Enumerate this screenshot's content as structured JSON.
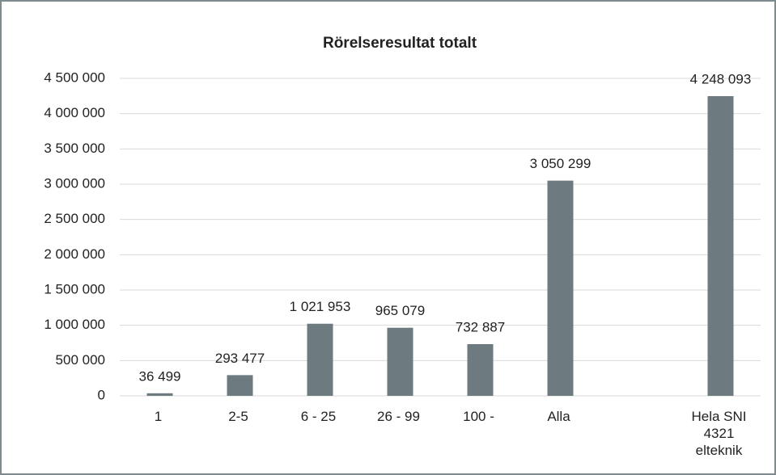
{
  "chart_data": {
    "type": "bar",
    "title": "Rörelseresultat totalt",
    "categories": [
      "1",
      "2-5",
      "6 - 25",
      "26 - 99",
      "100 -",
      "Alla",
      null,
      "Hela SNI 4321 elteknik"
    ],
    "values": [
      36499,
      293477,
      1021953,
      965079,
      732887,
      3050299,
      null,
      4248093
    ],
    "value_labels": [
      "36 499",
      "293 477",
      "1 021 953",
      "965 079",
      "732 887",
      "3 050 299",
      null,
      "4 248 093"
    ],
    "color": "#6d7b80",
    "ylim": [
      0,
      4500000
    ],
    "yticks": [
      0,
      {
        "value": 500000,
        "label": "500 000"
      },
      {
        "value": 1000000,
        "label": "1 000 000"
      },
      {
        "value": 1500000,
        "label": "1 500 000"
      },
      {
        "value": 2000000,
        "label": "2 000 000"
      },
      {
        "value": 2500000,
        "label": "2 500 000"
      },
      {
        "value": 3000000,
        "label": "3 000 000"
      },
      {
        "value": 3500000,
        "label": "3 500 000"
      },
      {
        "value": 4000000,
        "label": "4 000 000"
      },
      {
        "value": 4500000,
        "label": "4 500 000"
      }
    ],
    "grid": true
  }
}
